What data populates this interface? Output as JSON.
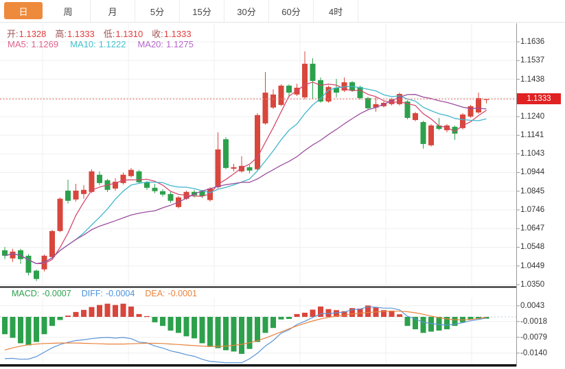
{
  "tabs": {
    "items": [
      "日",
      "周",
      "月",
      "5分",
      "15分",
      "30分",
      "60分",
      "4时"
    ],
    "active_index": 0
  },
  "ohlc": {
    "items": [
      {
        "label": "开:",
        "value": "1.1328"
      },
      {
        "label": "高:",
        "value": "1.1333"
      },
      {
        "label": "低:",
        "value": "1.1310"
      },
      {
        "label": "收:",
        "value": "1.1333"
      }
    ]
  },
  "ma_legend": {
    "items": [
      {
        "label": "MA5:",
        "value": "1.1269",
        "color": "#e0608a"
      },
      {
        "label": "MA10:",
        "value": "1.1222",
        "color": "#3fc2ce"
      },
      {
        "label": "MA20:",
        "value": "1.1275",
        "color": "#b565c9"
      }
    ]
  },
  "macd_legend": {
    "items": [
      {
        "label": "MACD:",
        "value": "-0.0007",
        "color": "#2da04d"
      },
      {
        "label": "DIFF:",
        "value": "-0.0004",
        "color": "#4a90d9"
      },
      {
        "label": "DEA:",
        "value": "-0.0001",
        "color": "#e8823c"
      }
    ]
  },
  "price_axis": {
    "current": "1.1333",
    "tick_values": [
      1.1636,
      1.1537,
      1.1438,
      1.1339,
      1.124,
      1.1141,
      1.1043,
      1.0944,
      1.0845,
      1.0746,
      1.0647,
      1.0548,
      1.0449,
      1.035
    ],
    "tick_labels": [
      "1.1636",
      "1.1537",
      "1.1438",
      "",
      "1.1240",
      "1.1141",
      "1.1043",
      "1.0944",
      "1.0845",
      "1.0746",
      "1.0647",
      "1.0548",
      "1.0449",
      "1.0350"
    ]
  },
  "macd_axis": {
    "tick_values": [
      0.0043,
      -0.0018,
      -0.0079,
      -0.014
    ],
    "tick_labels": [
      "0.0043",
      "-0.0018",
      "-0.0079",
      "-0.0140"
    ]
  },
  "colors": {
    "up": "#d8463c",
    "down": "#2da04c",
    "badge": "#e02222",
    "price_dotted": "#e57a73",
    "ma5": "#d6486e",
    "ma10": "#3fb6ce",
    "ma20": "#9b4d9e",
    "diff": "#5b93d6",
    "dea": "#e8823c",
    "grid": "#efefef",
    "axis_line": "#999999",
    "separator": "#151515",
    "tab_active_bg": "#ee8a3c",
    "macd_zero_dotted": "#b9cdd9"
  },
  "chart_data": {
    "type": "candlestick_with_macd",
    "price_range": {
      "top": 1.1636,
      "bottom": 1.035
    },
    "current_price": 1.1333,
    "ma_periods": [
      5,
      10,
      20
    ],
    "candles_format": [
      "open",
      "high",
      "low",
      "close"
    ],
    "candles": [
      [
        1.0532,
        1.055,
        1.0485,
        1.0503
      ],
      [
        1.0489,
        1.054,
        1.0471,
        1.0525
      ],
      [
        1.0532,
        1.054,
        1.046,
        1.0485
      ],
      [
        1.0503,
        1.0512,
        1.0398,
        1.0413
      ],
      [
        1.0424,
        1.043,
        1.0369,
        1.038
      ],
      [
        1.0431,
        1.051,
        1.042,
        1.0503
      ],
      [
        1.0496,
        1.064,
        1.049,
        1.0634
      ],
      [
        1.0634,
        1.0812,
        1.0628,
        1.0805
      ],
      [
        1.0848,
        1.0906,
        1.0779,
        1.0794
      ],
      [
        1.0801,
        1.0884,
        1.079,
        1.0848
      ],
      [
        1.083,
        1.0877,
        1.0805,
        1.0852
      ],
      [
        1.0841,
        1.0961,
        1.0835,
        1.095
      ],
      [
        1.0932,
        1.095,
        1.0877,
        1.0888
      ],
      [
        1.0903,
        1.091,
        1.0841,
        1.0852
      ],
      [
        1.0859,
        1.0913,
        1.0848,
        1.0895
      ],
      [
        1.0888,
        1.0943,
        1.088,
        1.0932
      ],
      [
        1.0925,
        1.0968,
        1.0917,
        1.0958
      ],
      [
        1.095,
        1.0958,
        1.0884,
        1.0892
      ],
      [
        1.0892,
        1.0899,
        1.0852,
        1.0863
      ],
      [
        1.0863,
        1.0884,
        1.0834,
        1.0845
      ],
      [
        1.0845,
        1.0856,
        1.0816,
        1.0827
      ],
      [
        1.083,
        1.0841,
        1.0783,
        1.0794
      ],
      [
        1.0761,
        1.0819,
        1.0754,
        1.0812
      ],
      [
        1.0805,
        1.0848,
        1.0798,
        1.0841
      ],
      [
        1.0841,
        1.0852,
        1.0812,
        1.0823
      ],
      [
        1.0845,
        1.0852,
        1.0808,
        1.0819
      ],
      [
        1.0798,
        1.0866,
        1.079,
        1.0859
      ],
      [
        1.0866,
        1.1157,
        1.0859,
        1.1066
      ],
      [
        1.112,
        1.1131,
        1.0961,
        1.0968
      ],
      [
        1.0964,
        1.099,
        1.095,
        1.0972
      ],
      [
        1.095,
        1.103,
        1.0943,
        1.0979
      ],
      [
        1.0972,
        1.0983,
        1.0939,
        1.0954
      ],
      [
        1.0961,
        1.1258,
        1.0954,
        1.1248
      ],
      [
        1.1204,
        1.1476,
        1.1197,
        1.1367
      ],
      [
        1.1288,
        1.1385,
        1.128,
        1.1357
      ],
      [
        1.1302,
        1.1411,
        1.1295,
        1.1404
      ],
      [
        1.1404,
        1.1411,
        1.1342,
        1.1367
      ],
      [
        1.1357,
        1.1414,
        1.1349,
        1.1393
      ],
      [
        1.1342,
        1.1585,
        1.1331,
        1.152
      ],
      [
        1.152,
        1.1549,
        1.1331,
        1.1429
      ],
      [
        1.1433,
        1.1447,
        1.1313,
        1.132
      ],
      [
        1.132,
        1.1404,
        1.1313,
        1.1397
      ],
      [
        1.1393,
        1.144,
        1.1342,
        1.1367
      ],
      [
        1.1378,
        1.1447,
        1.1371,
        1.1422
      ],
      [
        1.1422,
        1.1429,
        1.1371,
        1.1378
      ],
      [
        1.1397,
        1.1404,
        1.1331,
        1.1338
      ],
      [
        1.1338,
        1.1345,
        1.1277,
        1.1284
      ],
      [
        1.1288,
        1.1342,
        1.1266,
        1.1306
      ],
      [
        1.1295,
        1.132,
        1.1288,
        1.1313
      ],
      [
        1.1306,
        1.1338,
        1.1299,
        1.1331
      ],
      [
        1.1306,
        1.1367,
        1.1299,
        1.136
      ],
      [
        1.132,
        1.1327,
        1.1226,
        1.1233
      ],
      [
        1.1222,
        1.1265,
        1.1215,
        1.1258
      ],
      [
        1.1211,
        1.1218,
        1.107,
        1.1095
      ],
      [
        1.1088,
        1.12,
        1.1081,
        1.1193
      ],
      [
        1.1193,
        1.1233,
        1.1168,
        1.1175
      ],
      [
        1.1168,
        1.12,
        1.1157,
        1.1193
      ],
      [
        1.1186,
        1.1193,
        1.1117,
        1.115
      ],
      [
        1.1179,
        1.1258,
        1.1172,
        1.1251
      ],
      [
        1.124,
        1.1302,
        1.1233,
        1.1295
      ],
      [
        1.1262,
        1.1367,
        1.1255,
        1.1338
      ],
      [
        1.1328,
        1.1333,
        1.131,
        1.1333
      ]
    ],
    "macd": {
      "histogram": [
        -0.0067,
        -0.0081,
        -0.0102,
        -0.011,
        -0.0097,
        -0.0067,
        -0.0035,
        -0.0012,
        0.0005,
        0.0019,
        0.0027,
        0.0038,
        0.0046,
        0.0051,
        0.0046,
        0.0051,
        0.004,
        0.0011,
        0.0003,
        -0.0021,
        -0.0035,
        -0.0053,
        -0.0062,
        -0.0075,
        -0.0083,
        -0.0102,
        -0.0116,
        -0.0121,
        -0.0129,
        -0.0134,
        -0.0143,
        -0.0124,
        -0.0097,
        -0.0062,
        -0.0043,
        -0.001,
        -0.0008,
        0.0011,
        0.0016,
        0.0028,
        0.004,
        0.003,
        0.0026,
        0.0022,
        0.0034,
        0.0032,
        0.0044,
        0.0036,
        0.0026,
        0.0024,
        0.001,
        -0.0035,
        -0.0048,
        -0.0062,
        -0.0057,
        -0.0053,
        -0.0048,
        -0.0035,
        -0.0021,
        -0.001,
        -0.0008,
        -0.0007
      ],
      "dea": [
        -0.0128,
        -0.012,
        -0.0113,
        -0.0108,
        -0.0105,
        -0.0103,
        -0.0102,
        -0.0101,
        -0.0101,
        -0.0101,
        -0.0102,
        -0.0103,
        -0.0104,
        -0.0105,
        -0.0105,
        -0.0105,
        -0.0104,
        -0.0103,
        -0.0102,
        -0.0102,
        -0.0103,
        -0.0105,
        -0.0107,
        -0.0109,
        -0.0111,
        -0.0113,
        -0.0114,
        -0.0114,
        -0.0113,
        -0.011,
        -0.0106,
        -0.01,
        -0.0092,
        -0.0082,
        -0.007,
        -0.0058,
        -0.0046,
        -0.0035,
        -0.0025,
        -0.0016,
        -0.0008,
        -0.0002,
        0.0003,
        0.0007,
        0.0011,
        0.0014,
        0.0017,
        0.0019,
        0.0021,
        0.0022,
        0.0022,
        0.002,
        0.0016,
        0.001,
        0.0003,
        -0.0003,
        -0.0008,
        -0.0011,
        -0.0012,
        -0.001,
        -0.0006,
        -0.0001
      ],
      "note": "diff = dea + histogram/2"
    }
  }
}
